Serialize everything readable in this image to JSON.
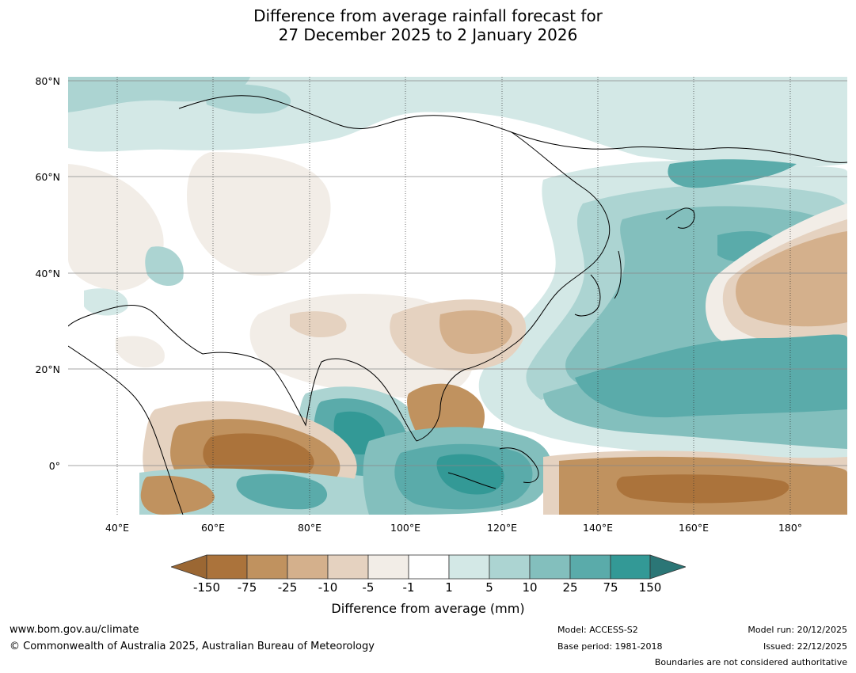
{
  "title": {
    "line1": "Difference from average rainfall forecast for",
    "line2": "27 December 2025 to 2 January 2026"
  },
  "map": {
    "lat_labels": [
      "80°N",
      "60°N",
      "40°N",
      "20°N",
      "0°"
    ],
    "lon_labels": [
      "40°E",
      "60°E",
      "80°E",
      "100°E",
      "120°E",
      "140°E",
      "160°E",
      "180°"
    ]
  },
  "legend": {
    "ticks": [
      "-150",
      "-75",
      "-25",
      "-10",
      "-5",
      "-1",
      "1",
      "5",
      "10",
      "25",
      "75",
      "150"
    ],
    "colors": [
      "#9b6733",
      "#ab733b",
      "#c0925f",
      "#d4b08c",
      "#e5d2c0",
      "#f2ede7",
      "#ffffff",
      "#d3e8e6",
      "#acd4d2",
      "#83bfbd",
      "#5aabaa",
      "#339996",
      "#2b7676"
    ],
    "title": "Difference from average (mm)"
  },
  "footer": {
    "url": "www.bom.gov.au/climate",
    "copyright": "© Commonwealth of Australia 2025, Australian Bureau of Meteorology",
    "model": "Model: ACCESS-S2",
    "base_period": "Base period: 1981-2018",
    "model_run": "Model run: 20/12/2025",
    "issued": "Issued: 22/12/2025",
    "disclaimer": "Boundaries are not considered authoritative"
  }
}
